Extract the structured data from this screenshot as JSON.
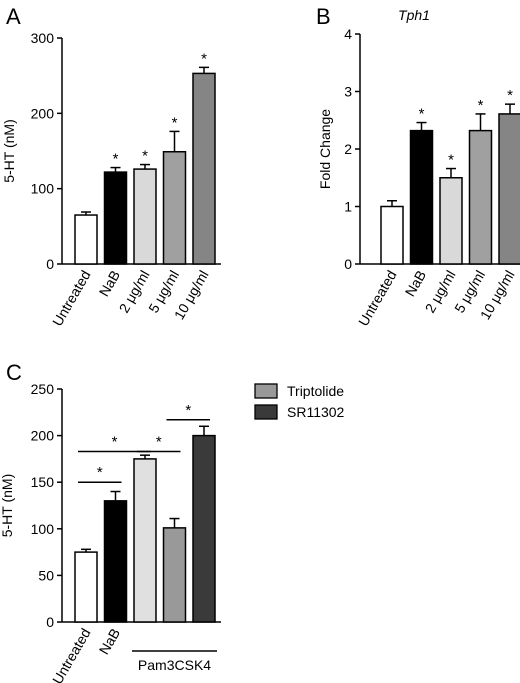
{
  "panels": {
    "a": {
      "letter": "A"
    },
    "b": {
      "letter": "B"
    },
    "c": {
      "letter": "C"
    }
  },
  "colors": {
    "untreated": "#ffffff",
    "nab": "#000000",
    "light": "#d9d9d9",
    "mid": "#a0a0a0",
    "dark": "#858585",
    "triptolide": "#999999",
    "sr11302": "#3a3a3a",
    "pam3csk4": "#e0e0e0"
  },
  "chart_data": [
    {
      "id": "a",
      "type": "bar",
      "ylabel": "5-HT (nM)",
      "ylim": [
        0,
        300
      ],
      "yticks": [
        0,
        100,
        200,
        300
      ],
      "categories": [
        "Untreated",
        "NaB",
        "2 μg/ml",
        "5 μg/ml",
        "10 μg/ml"
      ],
      "values": [
        65,
        122,
        126,
        149,
        253
      ],
      "errors": [
        4,
        6,
        6,
        27,
        8
      ],
      "colors": [
        "#ffffff",
        "#000000",
        "#d9d9d9",
        "#a0a0a0",
        "#858585"
      ],
      "significance": [
        "",
        "*",
        "*",
        "*",
        "*"
      ]
    },
    {
      "id": "b",
      "type": "bar",
      "title": "Tph1",
      "ylabel": "Fold Change",
      "ylim": [
        0,
        4
      ],
      "yticks": [
        0,
        1,
        2,
        3,
        4
      ],
      "categories": [
        "Untreated",
        "NaB",
        "2 μg/ml",
        "5 μg/ml",
        "10 μg/ml"
      ],
      "values": [
        1.0,
        2.32,
        1.5,
        2.32,
        2.61
      ],
      "errors": [
        0.1,
        0.14,
        0.16,
        0.29,
        0.17
      ],
      "colors": [
        "#ffffff",
        "#000000",
        "#d9d9d9",
        "#a0a0a0",
        "#858585"
      ],
      "significance": [
        "",
        "*",
        "*",
        "*",
        "*"
      ]
    },
    {
      "id": "c",
      "type": "bar",
      "ylabel": "5-HT (nM)",
      "ylim": [
        0,
        250
      ],
      "yticks": [
        0,
        50,
        100,
        150,
        200,
        250
      ],
      "categories": [
        "Untreated",
        "NaB",
        "",
        "",
        ""
      ],
      "group_label": "Pam3CSK4",
      "values": [
        75,
        130,
        175,
        101,
        200
      ],
      "errors": [
        3,
        10,
        4,
        10,
        10
      ],
      "colors": [
        "#ffffff",
        "#000000",
        "#e0e0e0",
        "#999999",
        "#3a3a3a"
      ],
      "legend": [
        {
          "name": "Triptolide",
          "color": "#999999"
        },
        {
          "name": "SR11302",
          "color": "#3a3a3a"
        }
      ],
      "comparisons": [
        {
          "from": 0,
          "to": 1,
          "y": 150,
          "label": "*"
        },
        {
          "from": 0,
          "to": 2,
          "y": 183,
          "label": "*"
        },
        {
          "from": 2,
          "to": 3,
          "y": 183,
          "label": "*"
        },
        {
          "from": 3,
          "to": 4,
          "y": 217,
          "label": "*"
        }
      ]
    }
  ]
}
